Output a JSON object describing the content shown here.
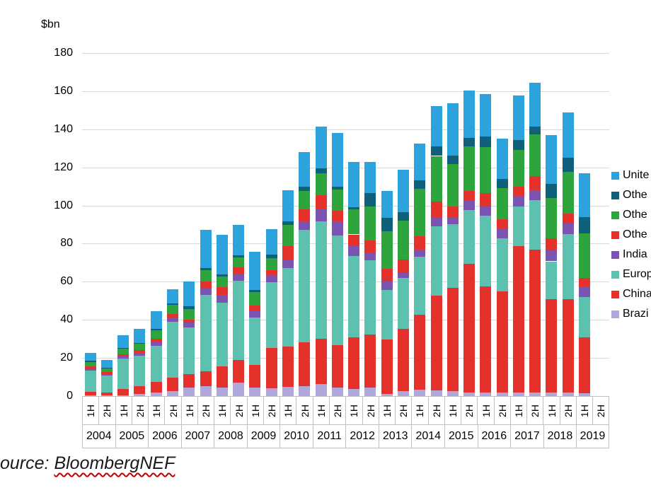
{
  "chart_data": {
    "type": "bar",
    "stacked": true,
    "title": "",
    "unit_label": "$bn",
    "xlabel": "",
    "ylabel": "$bn",
    "ylim": [
      0,
      180
    ],
    "yticks": [
      0,
      20,
      40,
      60,
      80,
      100,
      120,
      140,
      160,
      180
    ],
    "grid": "horizontal",
    "legend_position": "right",
    "categories": [
      {
        "year": "2004",
        "half": "1H"
      },
      {
        "year": "2004",
        "half": "2H"
      },
      {
        "year": "2005",
        "half": "1H"
      },
      {
        "year": "2005",
        "half": "2H"
      },
      {
        "year": "2006",
        "half": "1H"
      },
      {
        "year": "2006",
        "half": "2H"
      },
      {
        "year": "2007",
        "half": "1H"
      },
      {
        "year": "2007",
        "half": "2H"
      },
      {
        "year": "2008",
        "half": "1H"
      },
      {
        "year": "2008",
        "half": "2H"
      },
      {
        "year": "2009",
        "half": "1H"
      },
      {
        "year": "2009",
        "half": "2H"
      },
      {
        "year": "2010",
        "half": "1H"
      },
      {
        "year": "2010",
        "half": "2H"
      },
      {
        "year": "2011",
        "half": "1H"
      },
      {
        "year": "2011",
        "half": "2H"
      },
      {
        "year": "2012",
        "half": "1H"
      },
      {
        "year": "2012",
        "half": "2H"
      },
      {
        "year": "2013",
        "half": "1H"
      },
      {
        "year": "2013",
        "half": "2H"
      },
      {
        "year": "2014",
        "half": "1H"
      },
      {
        "year": "2014",
        "half": "2H"
      },
      {
        "year": "2015",
        "half": "1H"
      },
      {
        "year": "2015",
        "half": "2H"
      },
      {
        "year": "2016",
        "half": "1H"
      },
      {
        "year": "2016",
        "half": "2H"
      },
      {
        "year": "2017",
        "half": "1H"
      },
      {
        "year": "2017",
        "half": "2H"
      },
      {
        "year": "2018",
        "half": "1H"
      },
      {
        "year": "2018",
        "half": "2H"
      },
      {
        "year": "2019",
        "half": "1H"
      }
    ],
    "axis_years": [
      {
        "year": "2004",
        "halves": [
          "1H",
          "2H"
        ]
      },
      {
        "year": "2005",
        "halves": [
          "1H",
          "2H"
        ]
      },
      {
        "year": "2006",
        "halves": [
          "1H",
          "2H"
        ]
      },
      {
        "year": "2007",
        "halves": [
          "1H",
          "2H"
        ]
      },
      {
        "year": "2008",
        "halves": [
          "1H",
          "2H"
        ]
      },
      {
        "year": "2009",
        "halves": [
          "1H",
          "2H"
        ]
      },
      {
        "year": "2010",
        "halves": [
          "1H",
          "2H"
        ]
      },
      {
        "year": "2011",
        "halves": [
          "1H",
          "2H"
        ]
      },
      {
        "year": "2012",
        "halves": [
          "1H",
          "2H"
        ]
      },
      {
        "year": "2013",
        "halves": [
          "1H",
          "2H"
        ]
      },
      {
        "year": "2014",
        "halves": [
          "1H",
          "2H"
        ]
      },
      {
        "year": "2015",
        "halves": [
          "1H",
          "2H"
        ]
      },
      {
        "year": "2016",
        "halves": [
          "1H",
          "2H"
        ]
      },
      {
        "year": "2017",
        "halves": [
          "1H",
          "2H"
        ]
      },
      {
        "year": "2018",
        "halves": [
          "1H",
          "2H"
        ]
      },
      {
        "year": "2019",
        "halves": [
          "1H",
          "2H"
        ]
      }
    ],
    "series": [
      {
        "id": "brazil",
        "label": "Brazi",
        "color": "#AFA6DB",
        "values": [
          0.2,
          0.2,
          0.5,
          1.0,
          2.0,
          2.5,
          4.3,
          5.2,
          4.3,
          7.0,
          4.3,
          4.0,
          4.9,
          5.2,
          6.2,
          4.3,
          3.7,
          4.3,
          1.2,
          2.5,
          3.5,
          3.0,
          2.5,
          2.0,
          2.0,
          2.0,
          2.0,
          2.0,
          2.0,
          2.0,
          1.5
        ]
      },
      {
        "id": "china",
        "label": "China",
        "color": "#E5312B",
        "values": [
          2.0,
          1.6,
          3.3,
          4.3,
          5.3,
          7.0,
          7.1,
          7.8,
          11.2,
          11.8,
          12.0,
          21.4,
          21.1,
          23.0,
          23.8,
          22.3,
          27.2,
          27.9,
          28.5,
          32.8,
          39.2,
          49.6,
          54.4,
          67.3,
          55.5,
          53.0,
          76.6,
          74.7,
          48.7,
          49.0,
          29.4
        ]
      },
      {
        "id": "europe",
        "label": "Europ",
        "color": "#5CC1AF",
        "values": [
          11.0,
          9.0,
          15.7,
          15.8,
          19.0,
          29.5,
          24.7,
          40.0,
          33.6,
          41.8,
          24.8,
          34.2,
          41.1,
          59.0,
          61.8,
          57.5,
          42.7,
          38.9,
          26.0,
          26.6,
          30.5,
          36.4,
          33.4,
          28.4,
          37.1,
          27.9,
          20.7,
          26.2,
          20.0,
          34.0,
          21.0
        ]
      },
      {
        "id": "india",
        "label": "India",
        "color": "#7B54B2",
        "values": [
          1.0,
          0.8,
          1.3,
          1.7,
          1.9,
          2.0,
          2.5,
          3.3,
          4.1,
          3.5,
          3.4,
          3.8,
          4.3,
          4.4,
          6.2,
          7.5,
          5.0,
          4.4,
          4.3,
          2.7,
          3.5,
          5.0,
          3.7,
          5.0,
          5.0,
          4.9,
          5.6,
          5.0,
          5.7,
          5.6,
          5.5
        ]
      },
      {
        "id": "other-red",
        "label": "Othe",
        "color": "#E5312B",
        "values": [
          1.5,
          1.0,
          1.0,
          1.2,
          1.8,
          2.0,
          1.6,
          3.7,
          4.0,
          3.3,
          3.1,
          2.8,
          7.4,
          6.4,
          7.4,
          5.5,
          6.2,
          6.2,
          6.8,
          7.1,
          7.2,
          8.0,
          5.6,
          4.9,
          6.8,
          5.0,
          4.9,
          7.4,
          6.4,
          5.0,
          4.4
        ]
      },
      {
        "id": "other-green",
        "label": "Othe",
        "color": "#2EA53C",
        "values": [
          2.2,
          1.8,
          3.0,
          3.5,
          4.5,
          5.0,
          5.3,
          5.9,
          5.6,
          5.2,
          6.8,
          6.2,
          10.9,
          9.6,
          11.5,
          11.2,
          13.0,
          17.9,
          19.8,
          20.5,
          24.7,
          24.0,
          22.3,
          23.5,
          24.1,
          16.3,
          19.2,
          22.0,
          21.0,
          21.9,
          23.5
        ]
      },
      {
        "id": "other-dark",
        "label": "Othe",
        "color": "#10607C",
        "values": [
          0.5,
          0.4,
          0.5,
          0.5,
          0.8,
          0.8,
          1.5,
          1.3,
          1.2,
          1.3,
          1.3,
          1.8,
          1.9,
          2.3,
          2.5,
          1.6,
          1.2,
          7.0,
          6.8,
          4.3,
          4.6,
          5.0,
          4.3,
          4.4,
          5.6,
          5.0,
          5.3,
          4.0,
          7.4,
          7.4,
          8.6
        ]
      },
      {
        "id": "united",
        "label": "Unite",
        "color": "#2CA3DC",
        "values": [
          4.3,
          4.0,
          6.8,
          7.4,
          9.3,
          7.2,
          13.2,
          20.0,
          20.5,
          16.1,
          20.0,
          13.4,
          16.3,
          18.1,
          21.9,
          28.1,
          23.7,
          16.1,
          14.2,
          22.3,
          19.2,
          21.0,
          27.5,
          24.7,
          22.5,
          21.0,
          23.5,
          23.2,
          25.6,
          23.9,
          22.9
        ]
      }
    ]
  },
  "source": {
    "prefix": "ource: ",
    "name": "BloombergNEF"
  },
  "colors": {
    "gridline": "#D9D9D9",
    "axis_border": "#BFBFBF",
    "text": "#000000",
    "source_underline": "#C00000"
  }
}
